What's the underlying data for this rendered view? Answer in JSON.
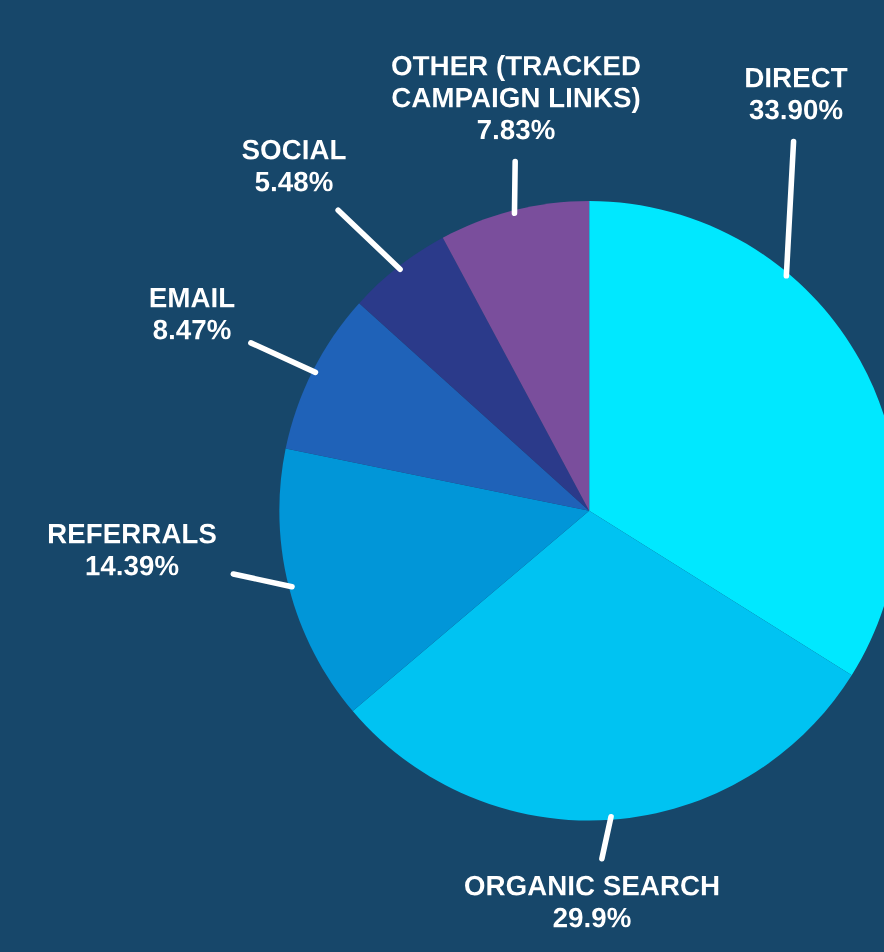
{
  "chart_data": {
    "type": "pie",
    "categories": [
      "DIRECT",
      "ORGANIC SEARCH",
      "REFERRALS",
      "EMAIL",
      "SOCIAL",
      "OTHER (TRACKED\nCAMPAIGN LINKS)"
    ],
    "values": [
      33.9,
      29.9,
      14.39,
      8.47,
      5.48,
      7.83
    ],
    "value_labels": [
      "33.90%",
      "29.9%",
      "14.39%",
      "8.47%",
      "5.48%",
      "7.83%"
    ],
    "colors": [
      "#00e8ff",
      "#00c3f2",
      "#0196d8",
      "#1f62b8",
      "#2b3a8a",
      "#7a4e9c"
    ]
  }
}
